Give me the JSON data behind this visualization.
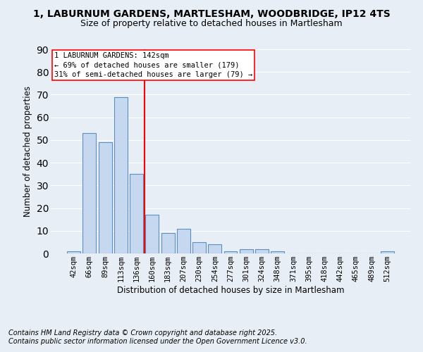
{
  "title": "1, LABURNUM GARDENS, MARTLESHAM, WOODBRIDGE, IP12 4TS",
  "subtitle": "Size of property relative to detached houses in Martlesham",
  "xlabel": "Distribution of detached houses by size in Martlesham",
  "ylabel": "Number of detached properties",
  "categories": [
    "42sqm",
    "66sqm",
    "89sqm",
    "113sqm",
    "136sqm",
    "160sqm",
    "183sqm",
    "207sqm",
    "230sqm",
    "254sqm",
    "277sqm",
    "301sqm",
    "324sqm",
    "348sqm",
    "371sqm",
    "395sqm",
    "418sqm",
    "442sqm",
    "465sqm",
    "489sqm",
    "512sqm"
  ],
  "values": [
    1,
    53,
    49,
    69,
    35,
    17,
    9,
    11,
    5,
    4,
    1,
    2,
    2,
    1,
    0,
    0,
    0,
    0,
    0,
    0,
    1
  ],
  "bar_color": "#c5d8f0",
  "bar_edge_color": "#5a8fc4",
  "vline_x_index": 4.5,
  "vline_color": "red",
  "annotation_text": "1 LABURNUM GARDENS: 142sqm\n← 69% of detached houses are smaller (179)\n31% of semi-detached houses are larger (79) →",
  "ylim": [
    0,
    90
  ],
  "yticks": [
    0,
    10,
    20,
    30,
    40,
    50,
    60,
    70,
    80,
    90
  ],
  "footer_line1": "Contains HM Land Registry data © Crown copyright and database right 2025.",
  "footer_line2": "Contains public sector information licensed under the Open Government Licence v3.0.",
  "bg_color": "#e8eef5",
  "grid_color": "#ffffff",
  "title_fontsize": 10,
  "subtitle_fontsize": 9,
  "axis_label_fontsize": 8.5,
  "tick_fontsize": 7.5,
  "footer_fontsize": 7
}
